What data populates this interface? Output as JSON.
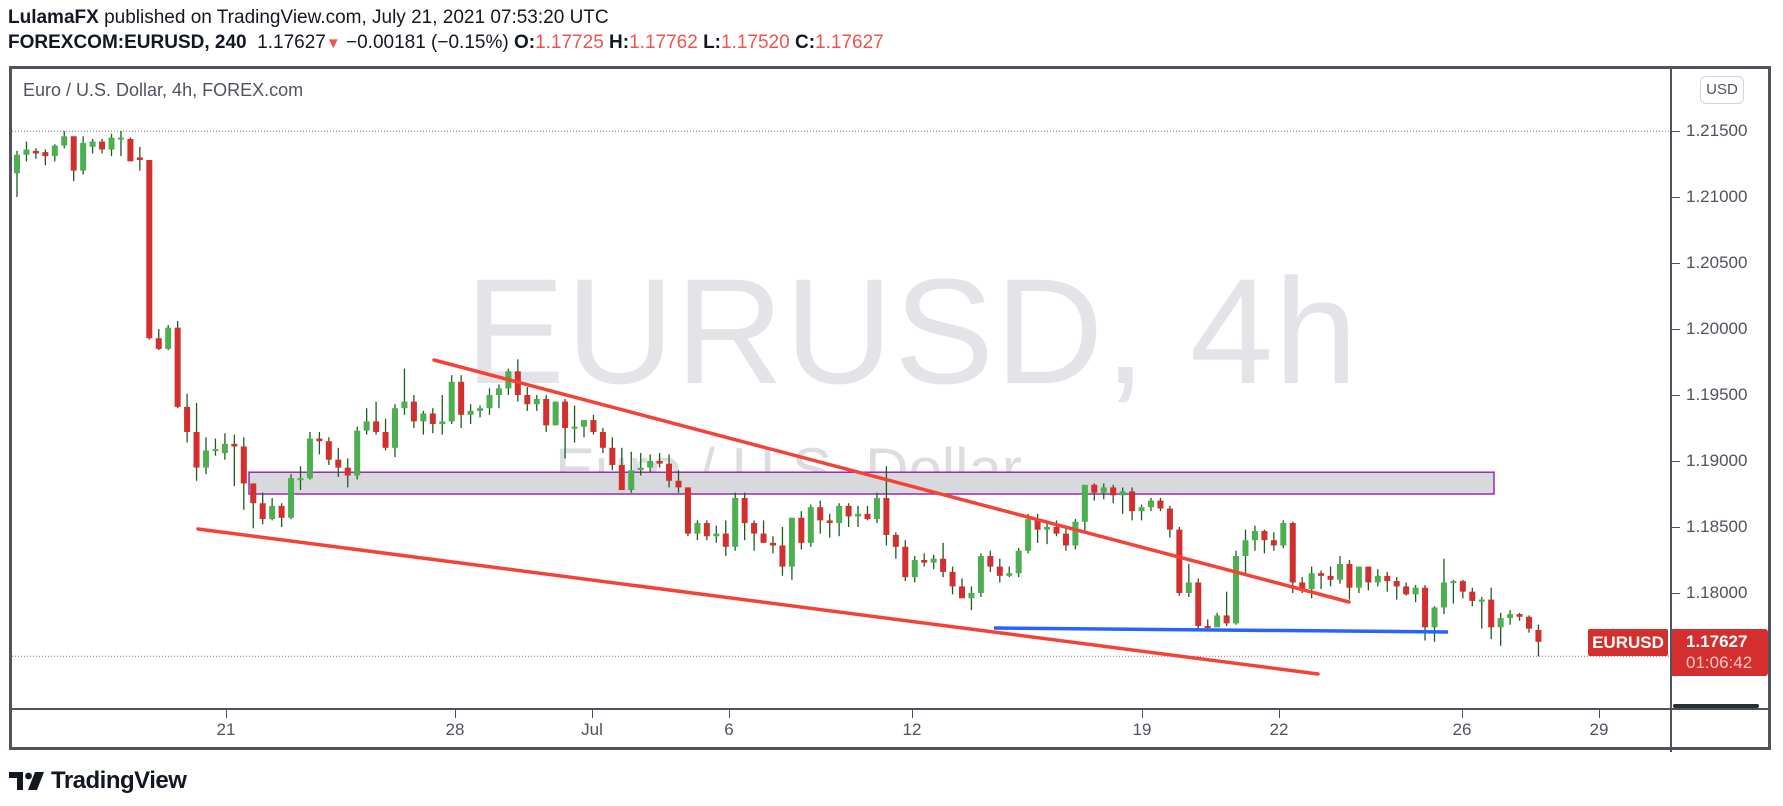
{
  "header": {
    "author": "LulamaFX",
    "published_text": " published on TradingView.com, July 21, 2021 07:53:20 UTC",
    "symbol": "FOREXCOM:EURUSD, 240",
    "last": "1.17627",
    "change_arrow": "▼",
    "change": "−0.00181 (−0.15%)",
    "o_label": "O:",
    "o": "1.17725",
    "h_label": "H:",
    "h": "1.17762",
    "l_label": "L:",
    "l": "1.17520",
    "c_label": "C:",
    "c": "1.17627"
  },
  "legend": {
    "title": "Euro / U.S. Dollar, 4h, FOREX.com"
  },
  "watermark": {
    "line1": "EURUSD, 4h",
    "line2": "Euro / U.S. Dollar"
  },
  "price_axis": {
    "currency_button": "USD",
    "ticks": [
      "1.21500",
      "1.21000",
      "1.20500",
      "1.20000",
      "1.19500",
      "1.19000",
      "1.18500",
      "1.18000"
    ]
  },
  "time_axis": {
    "ticks": [
      "21",
      "28",
      "Jul",
      "6",
      "12",
      "19",
      "22",
      "26",
      "29"
    ]
  },
  "last_price_label": {
    "symbol": "EURUSD",
    "price": "1.17627",
    "countdown": "01:06:42"
  },
  "branding": {
    "logo_text": "TradingView"
  },
  "colors": {
    "up": "#4caf50",
    "down": "#d32f2f",
    "wick": "#1b5e20",
    "trendline": "#f44336",
    "support": "#2962ff",
    "zone_fill": "#d8d9dc",
    "zone_border": "#9c27b0"
  },
  "chart_data": {
    "type": "candlestick",
    "title": "Euro / U.S. Dollar, 4h, FOREX.com",
    "symbol": "FOREXCOM:EURUSD",
    "interval": "240",
    "xlabel": "",
    "ylabel": "USD",
    "ylim": [
      1.171,
      1.216
    ],
    "x_ticks": [
      "21",
      "28",
      "Jul",
      "6",
      "12",
      "19",
      "22",
      "26",
      "29"
    ],
    "y_ticks": [
      1.215,
      1.21,
      1.205,
      1.2,
      1.195,
      1.19,
      1.185,
      1.18
    ],
    "grid": false,
    "last_price": 1.17627,
    "ohlc": [
      [
        1.2118,
        1.2135,
        1.21,
        1.2132
      ],
      [
        1.2132,
        1.2142,
        1.2127,
        1.2136
      ],
      [
        1.2135,
        1.2137,
        1.2129,
        1.2133
      ],
      [
        1.2134,
        1.2136,
        1.2124,
        1.2131
      ],
      [
        1.2131,
        1.214,
        1.2127,
        1.2139
      ],
      [
        1.2139,
        1.215,
        1.2137,
        1.2146
      ],
      [
        1.2146,
        1.2146,
        1.2112,
        1.212
      ],
      [
        1.212,
        1.2146,
        1.2117,
        1.2141
      ],
      [
        1.2138,
        1.2144,
        1.2133,
        1.2142
      ],
      [
        1.2142,
        1.2144,
        1.2133,
        1.2136
      ],
      [
        1.2136,
        1.2148,
        1.2131,
        1.2145
      ],
      [
        1.2144,
        1.215,
        1.2131,
        1.2145
      ],
      [
        1.2144,
        1.2145,
        1.2128,
        1.2127
      ],
      [
        1.213,
        1.2138,
        1.212,
        1.2128
      ],
      [
        1.2128,
        1.2128,
        1.1992,
        1.1993
      ],
      [
        1.1993,
        1.2,
        1.1984,
        1.1985
      ],
      [
        1.1985,
        1.2003,
        1.1984,
        1.2001
      ],
      [
        1.2001,
        1.2006,
        1.194,
        1.1941
      ],
      [
        1.1941,
        1.1951,
        1.1914,
        1.1922
      ],
      [
        1.1922,
        1.1944,
        1.1885,
        1.1895
      ],
      [
        1.1895,
        1.1918,
        1.189,
        1.1908
      ],
      [
        1.1908,
        1.1917,
        1.1904,
        1.1909
      ],
      [
        1.1906,
        1.1921,
        1.1901,
        1.1913
      ],
      [
        1.1913,
        1.192,
        1.1881,
        1.1911
      ],
      [
        1.1911,
        1.1918,
        1.1863,
        1.1883
      ],
      [
        1.1883,
        1.1883,
        1.1849,
        1.1868
      ],
      [
        1.1868,
        1.1876,
        1.1852,
        1.1856
      ],
      [
        1.1856,
        1.1872,
        1.1855,
        1.1866
      ],
      [
        1.1866,
        1.1868,
        1.185,
        1.1857
      ],
      [
        1.1857,
        1.189,
        1.1856,
        1.1887
      ],
      [
        1.1887,
        1.1896,
        1.1878,
        1.1887
      ],
      [
        1.1887,
        1.1922,
        1.1886,
        1.1917
      ],
      [
        1.1917,
        1.1922,
        1.1905,
        1.1915
      ],
      [
        1.1915,
        1.1918,
        1.1897,
        1.1901
      ],
      [
        1.1901,
        1.191,
        1.1888,
        1.1895
      ],
      [
        1.1895,
        1.1902,
        1.188,
        1.1889
      ],
      [
        1.1889,
        1.1926,
        1.1886,
        1.1923
      ],
      [
        1.1923,
        1.194,
        1.192,
        1.193
      ],
      [
        1.193,
        1.1945,
        1.192,
        1.1922
      ],
      [
        1.1922,
        1.1932,
        1.1908,
        1.191
      ],
      [
        1.191,
        1.1943,
        1.1903,
        1.194
      ],
      [
        1.194,
        1.197,
        1.1935,
        1.1945
      ],
      [
        1.1945,
        1.195,
        1.1925,
        1.193
      ],
      [
        1.193,
        1.1938,
        1.192,
        1.1936
      ],
      [
        1.1936,
        1.194,
        1.1921,
        1.1928
      ],
      [
        1.1928,
        1.195,
        1.192,
        1.193
      ],
      [
        1.193,
        1.1965,
        1.1928,
        1.196
      ],
      [
        1.196,
        1.1965,
        1.1925,
        1.1935
      ],
      [
        1.1935,
        1.1943,
        1.1928,
        1.1938
      ],
      [
        1.1938,
        1.1942,
        1.1933,
        1.194
      ],
      [
        1.194,
        1.1955,
        1.1935,
        1.195
      ],
      [
        1.195,
        1.1958,
        1.194,
        1.1955
      ],
      [
        1.1955,
        1.197,
        1.195,
        1.1968
      ],
      [
        1.1968,
        1.1977,
        1.1945,
        1.195
      ],
      [
        1.195,
        1.1956,
        1.1938,
        1.1943
      ],
      [
        1.1943,
        1.195,
        1.1938,
        1.1947
      ],
      [
        1.1947,
        1.195,
        1.1922,
        1.1927
      ],
      [
        1.1927,
        1.1945,
        1.1927,
        1.1945
      ],
      [
        1.1945,
        1.1947,
        1.1902,
        1.1925
      ],
      [
        1.1925,
        1.1942,
        1.1914,
        1.1926
      ],
      [
        1.1926,
        1.193,
        1.1918,
        1.1931
      ],
      [
        1.1931,
        1.1935,
        1.192,
        1.1922
      ],
      [
        1.1922,
        1.1925,
        1.1906,
        1.191
      ],
      [
        1.191,
        1.1918,
        1.1893,
        1.1897
      ],
      [
        1.1897,
        1.191,
        1.1883,
        1.1878
      ],
      [
        1.1878,
        1.1907,
        1.1876,
        1.1893
      ],
      [
        1.1893,
        1.1906,
        1.1889,
        1.1895
      ],
      [
        1.1895,
        1.1905,
        1.1892,
        1.19
      ],
      [
        1.19,
        1.1906,
        1.1895,
        1.1898
      ],
      [
        1.1898,
        1.1905,
        1.188,
        1.1885
      ],
      [
        1.1885,
        1.1893,
        1.1876,
        1.188
      ],
      [
        1.188,
        1.188,
        1.1843,
        1.1845
      ],
      [
        1.1845,
        1.1855,
        1.184,
        1.1853
      ],
      [
        1.1853,
        1.1855,
        1.184,
        1.1843
      ],
      [
        1.1843,
        1.1851,
        1.1838,
        1.1845
      ],
      [
        1.1845,
        1.1855,
        1.1828,
        1.1835
      ],
      [
        1.1835,
        1.1876,
        1.1832,
        1.1872
      ],
      [
        1.1872,
        1.1876,
        1.184,
        1.1853
      ],
      [
        1.1853,
        1.1855,
        1.1832,
        1.1845
      ],
      [
        1.1845,
        1.1855,
        1.184,
        1.1838
      ],
      [
        1.1838,
        1.1843,
        1.183,
        1.1836
      ],
      [
        1.1836,
        1.185,
        1.1813,
        1.182
      ],
      [
        1.182,
        1.1857,
        1.181,
        1.1857
      ],
      [
        1.1857,
        1.1862,
        1.1833,
        1.1838
      ],
      [
        1.1838,
        1.1867,
        1.1835,
        1.1865
      ],
      [
        1.1865,
        1.187,
        1.1845,
        1.1855
      ],
      [
        1.1855,
        1.186,
        1.1842,
        1.1853
      ],
      [
        1.1853,
        1.1868,
        1.1843,
        1.1866
      ],
      [
        1.1866,
        1.1868,
        1.185,
        1.1858
      ],
      [
        1.1858,
        1.1866,
        1.185,
        1.186
      ],
      [
        1.186,
        1.1866,
        1.1855,
        1.1856
      ],
      [
        1.1856,
        1.1876,
        1.1853,
        1.1872
      ],
      [
        1.1872,
        1.1896,
        1.1836,
        1.1844
      ],
      [
        1.1844,
        1.1846,
        1.1826,
        1.1835
      ],
      [
        1.1835,
        1.184,
        1.1809,
        1.1812
      ],
      [
        1.1812,
        1.1828,
        1.1808,
        1.1825
      ],
      [
        1.1825,
        1.183,
        1.182,
        1.1823
      ],
      [
        1.1823,
        1.1829,
        1.1818,
        1.1826
      ],
      [
        1.1826,
        1.1838,
        1.1812,
        1.1816
      ],
      [
        1.1816,
        1.182,
        1.1799,
        1.1805
      ],
      [
        1.1805,
        1.1811,
        1.1798,
        1.1796
      ],
      [
        1.1796,
        1.1805,
        1.1787,
        1.18
      ],
      [
        1.18,
        1.183,
        1.1797,
        1.1828
      ],
      [
        1.1828,
        1.1832,
        1.1816,
        1.182
      ],
      [
        1.182,
        1.1826,
        1.1808,
        1.1813
      ],
      [
        1.1813,
        1.182,
        1.1812,
        1.1815
      ],
      [
        1.1815,
        1.1834,
        1.1812,
        1.1832
      ],
      [
        1.1832,
        1.186,
        1.183,
        1.1856
      ],
      [
        1.1856,
        1.186,
        1.1838,
        1.1848
      ],
      [
        1.1848,
        1.1855,
        1.1837,
        1.185
      ],
      [
        1.185,
        1.1855,
        1.1843,
        1.1845
      ],
      [
        1.1845,
        1.185,
        1.1832,
        1.1836
      ],
      [
        1.1836,
        1.1856,
        1.1833,
        1.1854
      ],
      [
        1.1854,
        1.188,
        1.1846,
        1.1882
      ],
      [
        1.1882,
        1.1883,
        1.187,
        1.1876
      ],
      [
        1.1876,
        1.1883,
        1.1871,
        1.188
      ],
      [
        1.188,
        1.1882,
        1.1868,
        1.1874
      ],
      [
        1.1874,
        1.188,
        1.186,
        1.1877
      ],
      [
        1.1877,
        1.188,
        1.1855,
        1.1862
      ],
      [
        1.1862,
        1.1867,
        1.1855,
        1.1865
      ],
      [
        1.1865,
        1.1872,
        1.1862,
        1.187
      ],
      [
        1.187,
        1.1872,
        1.1862,
        1.1864
      ],
      [
        1.1864,
        1.1866,
        1.1842,
        1.1848
      ],
      [
        1.1848,
        1.185,
        1.1798,
        1.18
      ],
      [
        1.18,
        1.1822,
        1.1797,
        1.1808
      ],
      [
        1.1808,
        1.1811,
        1.1771,
        1.1775
      ],
      [
        1.1775,
        1.178,
        1.1772,
        1.1774
      ],
      [
        1.1774,
        1.1785,
        1.1775,
        1.1783
      ],
      [
        1.1783,
        1.1801,
        1.1775,
        1.1777
      ],
      [
        1.1777,
        1.1832,
        1.1776,
        1.1828
      ],
      [
        1.1828,
        1.1848,
        1.1815,
        1.184
      ],
      [
        1.184,
        1.1851,
        1.1832,
        1.1847
      ],
      [
        1.1847,
        1.1848,
        1.183,
        1.184
      ],
      [
        1.184,
        1.1846,
        1.1832,
        1.1836
      ],
      [
        1.1836,
        1.1855,
        1.1834,
        1.1853
      ],
      [
        1.1853,
        1.1854,
        1.18,
        1.1808
      ],
      [
        1.1808,
        1.1812,
        1.18,
        1.1803
      ],
      [
        1.1803,
        1.182,
        1.1796,
        1.1815
      ],
      [
        1.1815,
        1.1817,
        1.1803,
        1.1813
      ],
      [
        1.1813,
        1.182,
        1.1805,
        1.181
      ],
      [
        1.181,
        1.1828,
        1.1807,
        1.1822
      ],
      [
        1.1822,
        1.1825,
        1.1795,
        1.1804
      ],
      [
        1.1804,
        1.182,
        1.18,
        1.182
      ],
      [
        1.182,
        1.182,
        1.1802,
        1.1808
      ],
      [
        1.1808,
        1.1818,
        1.1805,
        1.1813
      ],
      [
        1.1813,
        1.1816,
        1.1801,
        1.1809
      ],
      [
        1.1809,
        1.1812,
        1.1795,
        1.1805
      ],
      [
        1.1805,
        1.1808,
        1.1798,
        1.1799
      ],
      [
        1.1799,
        1.1806,
        1.1793,
        1.1804
      ],
      [
        1.1804,
        1.1806,
        1.1764,
        1.1774
      ],
      [
        1.1774,
        1.179,
        1.1763,
        1.1789
      ],
      [
        1.1789,
        1.1826,
        1.1784,
        1.1808
      ],
      [
        1.1808,
        1.181,
        1.1792,
        1.1809
      ],
      [
        1.1809,
        1.181,
        1.1796,
        1.1801
      ],
      [
        1.1801,
        1.1804,
        1.179,
        1.1794
      ],
      [
        1.1794,
        1.1797,
        1.1773,
        1.1795
      ],
      [
        1.1795,
        1.1804,
        1.1765,
        1.1774
      ],
      [
        1.1774,
        1.1785,
        1.176,
        1.1781
      ],
      [
        1.1781,
        1.1787,
        1.1776,
        1.1784
      ],
      [
        1.1784,
        1.1785,
        1.1779,
        1.1782
      ],
      [
        1.1782,
        1.1783,
        1.177,
        1.1773
      ],
      [
        1.1772,
        1.1776,
        1.1752,
        1.1763
      ]
    ],
    "drawings": [
      {
        "type": "trendline",
        "name": "upper-resistance",
        "color": "#f44336",
        "points": [
          [
            "Jun 27",
            1.1977
          ],
          [
            "Jul 23",
            1.1794
          ]
        ]
      },
      {
        "type": "trendline",
        "name": "lower-support",
        "color": "#f44336",
        "points": [
          [
            "Jun 20",
            1.185
          ],
          [
            "Jul 22",
            1.174
          ]
        ]
      },
      {
        "type": "horizontal-segment",
        "name": "support-line",
        "color": "#2962ff",
        "points": [
          [
            "Jul 14",
            1.1773
          ],
          [
            "Jul 25",
            1.1771
          ]
        ]
      },
      {
        "type": "rectangle",
        "name": "supply-zone",
        "fill": "#d8d9dc",
        "border": "#9c27b0",
        "price_top": 1.18915,
        "price_bottom": 1.1875,
        "from": "Jun 21",
        "to": "Jul 27"
      }
    ]
  }
}
